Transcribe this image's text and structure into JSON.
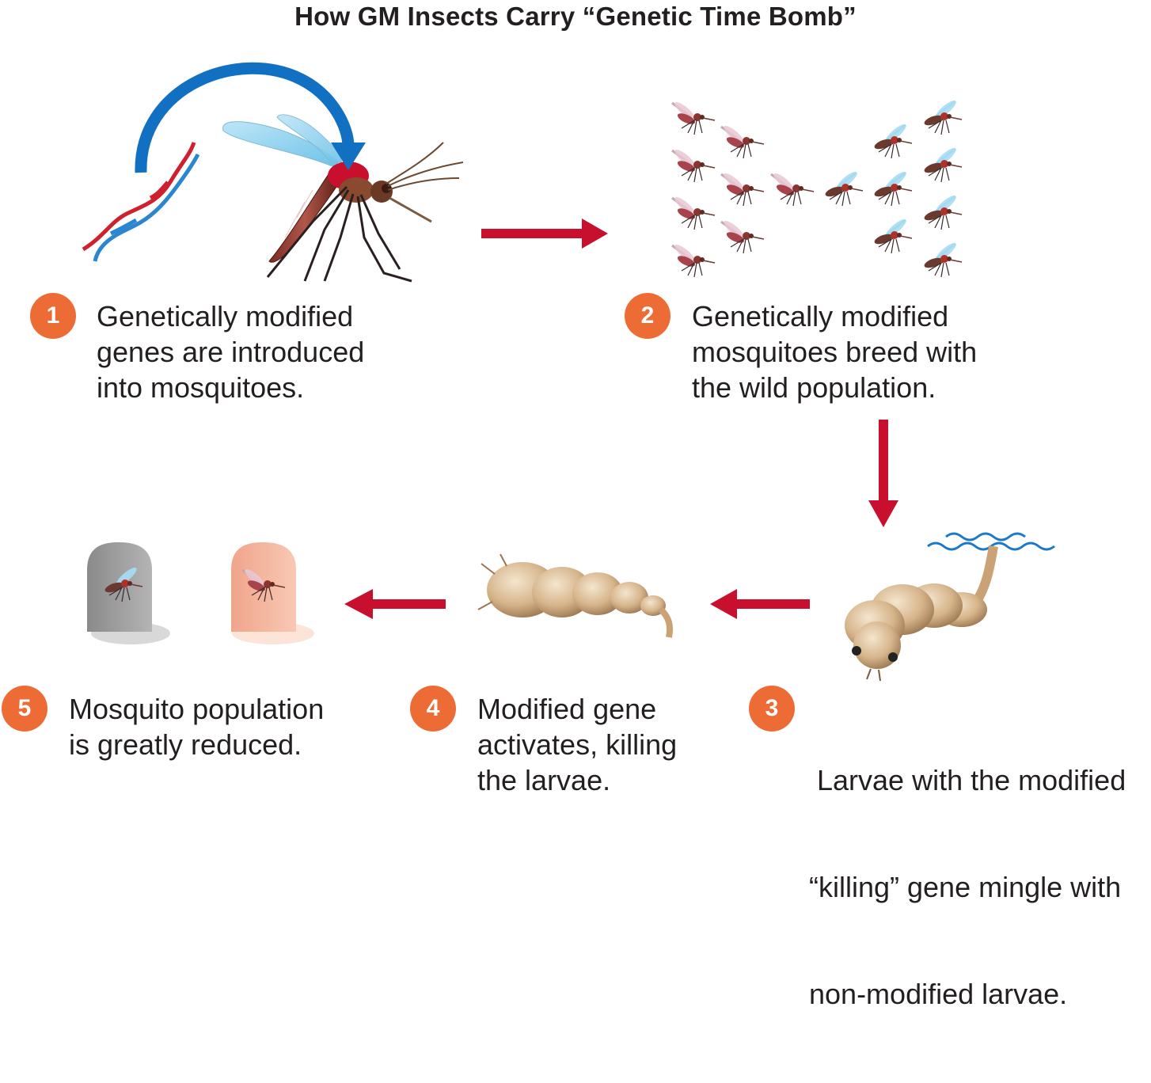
{
  "title": "How GM Insects Carry “Genetic Time Bomb”",
  "colors": {
    "badge": "#ed6c36",
    "arrow": "#c8102e",
    "curved_arrow": "#1170c2",
    "dna_red": "#d0202e",
    "dna_blue": "#2a86d1",
    "water": "#1d79c7"
  },
  "steps": [
    {
      "number": "1",
      "lines": [
        "Genetically modified",
        "genes are introduced",
        "into mosquitoes."
      ]
    },
    {
      "number": "2",
      "lines": [
        "Genetically modified",
        "mosquitoes breed with",
        "the wild population."
      ]
    },
    {
      "number": "3",
      "lines": [
        " Larvae with the modified",
        "“killing” gene mingle with",
        "non-modified larvae."
      ]
    },
    {
      "number": "4",
      "lines": [
        "Modified gene",
        "activates, killing",
        "the larvae."
      ]
    },
    {
      "number": "5",
      "lines": [
        "Mosquito population",
        "is greatly reduced."
      ]
    }
  ],
  "icons": [
    "dna-helix-icon",
    "mosquito-icon",
    "larva-icon",
    "tombstone-icon",
    "water-wave-icon"
  ]
}
